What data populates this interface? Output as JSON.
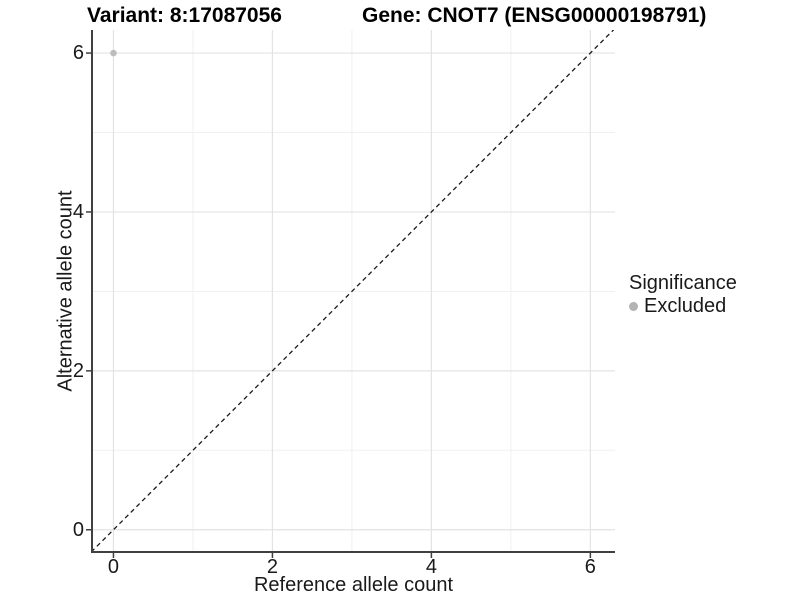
{
  "titles": {
    "variant": "Variant: 8:17087056",
    "gene": "Gene: CNOT7 (ENSG00000198791)"
  },
  "chart_data": {
    "type": "scatter",
    "xlabel": "Reference allele count",
    "ylabel": "Alternative allele count",
    "xlim": [
      -0.27,
      6.31
    ],
    "ylim": [
      -0.28,
      6.29
    ],
    "x_major_ticks": [
      0,
      2,
      4,
      6
    ],
    "x_minor_gridlines": [
      1,
      3,
      5
    ],
    "y_major_ticks": [
      0,
      2,
      4,
      6
    ],
    "y_minor_gridlines": [
      1,
      3,
      5
    ],
    "reference_line": {
      "type": "identity",
      "slope": 1,
      "intercept": 0,
      "style": "dashed",
      "color": "#1a1a1a"
    },
    "points": [
      {
        "x": 0,
        "y": 6,
        "series": "Excluded",
        "color": "#bdbdbd",
        "radius": 3.3
      }
    ],
    "legend": {
      "title": "Significance",
      "position": "right",
      "items": [
        {
          "label": "Excluded",
          "color": "#b3b3b3"
        }
      ]
    },
    "grid": true,
    "colors": {
      "major_grid": "#e3e3e3",
      "minor_grid": "#f0f0f0",
      "axis_line": "#404040",
      "background": "#ffffff"
    }
  }
}
